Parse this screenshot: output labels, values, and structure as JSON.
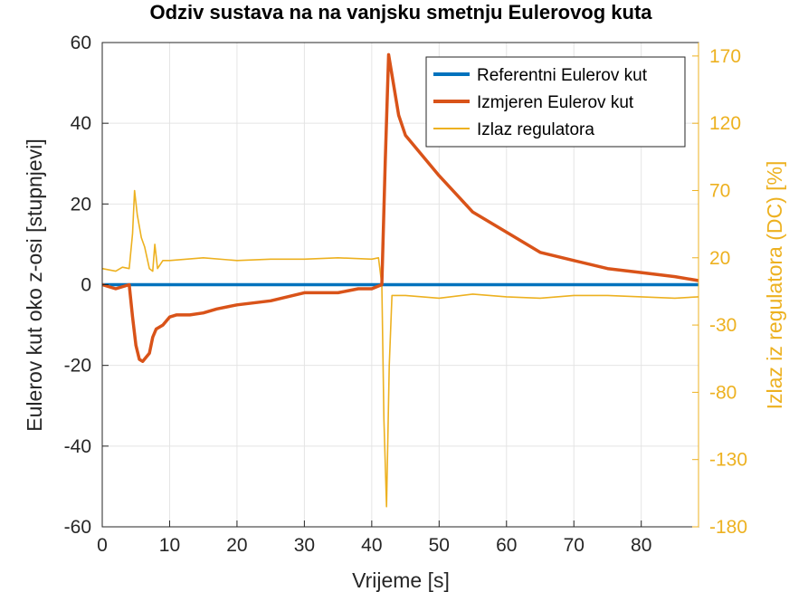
{
  "chart_data": {
    "type": "line",
    "title": "Odziv sustava na na vanjsku smetnju Eulerovog kuta",
    "xlabel": "Vrijeme [s]",
    "ylabel_left": "Eulerov kut oko z-osi [stupnjevi]",
    "ylabel_right": "Izlaz iz regulatora (DC) [%]",
    "xlim": [
      0,
      88.5
    ],
    "ylim_left": [
      -60,
      60
    ],
    "ylim_right": [
      -180,
      180
    ],
    "xticks": [
      "0",
      "10",
      "20",
      "30",
      "40",
      "50",
      "60",
      "70",
      "80"
    ],
    "yticks_left": [
      "60",
      "40",
      "20",
      "0",
      "-20",
      "-40",
      "-60"
    ],
    "yticks_right": [
      "170",
      "120",
      "70",
      "20",
      "-30",
      "-80",
      "-130",
      "-180"
    ],
    "grid": true,
    "legend_position": "top-right",
    "colors": {
      "reference": "#0072BD",
      "measured": "#D95319",
      "controller": "#EDB120",
      "right_axis": "#EDB120"
    },
    "series": [
      {
        "name": "Referentni Eulerov kut",
        "axis": "left",
        "x": [
          0,
          88.5
        ],
        "y": [
          0,
          0
        ]
      },
      {
        "name": "Izmjeren Eulerov kut",
        "axis": "left",
        "x": [
          0,
          2,
          4,
          4.5,
          5,
          5.5,
          6,
          7,
          7.5,
          8,
          9,
          10,
          11,
          13,
          15,
          17,
          20,
          25,
          30,
          35,
          38,
          40,
          41.5,
          42,
          42.5,
          43,
          44,
          45,
          47,
          50,
          55,
          60,
          65,
          70,
          75,
          80,
          85,
          88.5
        ],
        "y": [
          0,
          -1,
          0,
          -8,
          -15,
          -18.5,
          -19,
          -17,
          -13,
          -11,
          -10,
          -8,
          -7.5,
          -7.5,
          -7,
          -6,
          -5,
          -4,
          -2,
          -2,
          -1,
          -1,
          0,
          30,
          57,
          52,
          42,
          37,
          33,
          27,
          18,
          13,
          8,
          6,
          4,
          3,
          2,
          1
        ]
      },
      {
        "name": "Izlaz regulatora",
        "axis": "right",
        "x": [
          0,
          2,
          3,
          4,
          4.5,
          4.8,
          5.2,
          5.8,
          6.3,
          7,
          7.5,
          7.8,
          8.2,
          9,
          10,
          15,
          20,
          25,
          30,
          35,
          40,
          41,
          41.5,
          41.8,
          42.2,
          42.6,
          43,
          45,
          50,
          55,
          60,
          65,
          70,
          75,
          80,
          85,
          88.5
        ],
        "y": [
          12,
          10,
          13,
          12,
          38,
          70,
          52,
          35,
          28,
          12,
          10,
          30,
          12,
          18,
          18,
          20,
          18,
          19,
          19,
          20,
          19,
          20,
          0,
          -100,
          -165,
          -60,
          -8,
          -8,
          -10,
          -7,
          -9,
          -10,
          -8,
          -8,
          -9,
          -10,
          -9
        ]
      }
    ]
  }
}
